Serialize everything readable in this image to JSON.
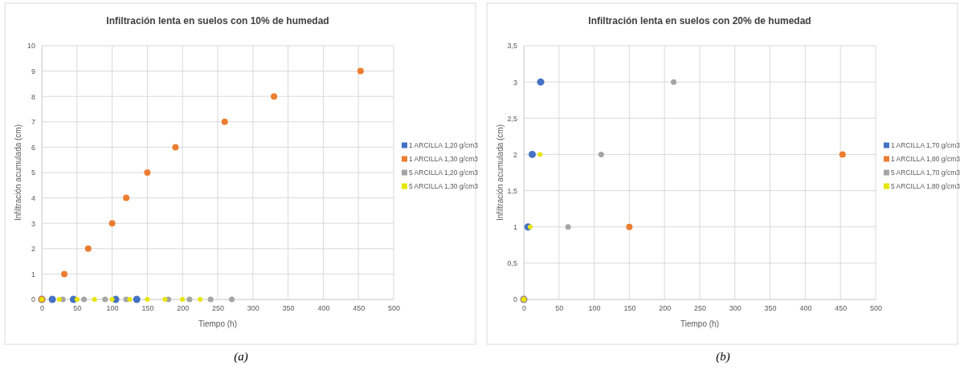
{
  "chart_data": [
    {
      "type": "scatter",
      "title": "Infiltración lenta en suelos con 10% de humedad",
      "xlabel": "Tiempo (h)",
      "ylabel": "Infiltración acumulada  (cm)",
      "xlim": [
        0,
        500
      ],
      "xticks": [
        0,
        50,
        100,
        150,
        200,
        250,
        300,
        350,
        400,
        450,
        500
      ],
      "ylim": [
        0,
        10
      ],
      "yticks": [
        0,
        1,
        2,
        3,
        4,
        5,
        6,
        7,
        8,
        9,
        10
      ],
      "grid": true,
      "legend": "right",
      "marker": "circle",
      "annotations": [
        "(a)"
      ],
      "series": [
        {
          "name": "1 ARCILLA 1,20 g/cm3",
          "color": "#4472c4",
          "x": [
            0,
            15,
            45,
            105,
            135
          ],
          "values": [
            0,
            0,
            0,
            0,
            0
          ]
        },
        {
          "name": "1 ARCILLA 1,30 g/cm3",
          "color": "#ed7d31",
          "x": [
            0,
            32,
            66,
            100,
            120,
            150,
            190,
            260,
            330,
            453
          ],
          "values": [
            0,
            1,
            2,
            3,
            4,
            5,
            6,
            7,
            8,
            9
          ]
        },
        {
          "name": "5 ARCILLA 1,20 g/cm3",
          "color": "#a5a5a5",
          "x": [
            30,
            60,
            90,
            120,
            180,
            210,
            240,
            270
          ],
          "values": [
            0,
            0,
            0,
            0,
            0,
            0,
            0,
            0
          ]
        },
        {
          "name": "5 ARCILLA 1,30 g/cm3",
          "color": "#e6e600",
          "x": [
            0,
            25,
            50,
            75,
            100,
            125,
            150,
            175,
            200,
            225
          ],
          "values": [
            0,
            0,
            0,
            0,
            0,
            0,
            0,
            0,
            0,
            0
          ]
        }
      ]
    },
    {
      "type": "scatter",
      "title": "Infiltración lenta en suelos con 20% de humedad",
      "xlabel": "Tiempo (h)",
      "ylabel": "Infiltración acumulada  (cm)",
      "xlim": [
        0,
        500
      ],
      "xticks": [
        0,
        50,
        100,
        150,
        200,
        250,
        300,
        350,
        400,
        450,
        500
      ],
      "ylim": [
        0,
        3.5
      ],
      "yticks": [
        {
          "value": 0,
          "label": "0"
        },
        {
          "value": 0.5,
          "label": "0,5"
        },
        {
          "value": 1,
          "label": "1"
        },
        {
          "value": 1.5,
          "label": "1,5"
        },
        {
          "value": 2,
          "label": "2"
        },
        {
          "value": 2.5,
          "label": "2,5"
        },
        {
          "value": 3,
          "label": "3"
        },
        {
          "value": 3.5,
          "label": "3,5"
        }
      ],
      "grid": true,
      "legend": "right",
      "marker": "circle",
      "annotations": [
        "(b)"
      ],
      "series": [
        {
          "name": "1 ARCILLA 1,70 g/cm3",
          "color": "#4472c4",
          "x": [
            0,
            6,
            12,
            24
          ],
          "values": [
            0,
            1,
            2,
            3
          ]
        },
        {
          "name": "1 ARCILLA 1,80 g/cm3",
          "color": "#ed7d31",
          "x": [
            0,
            150,
            453
          ],
          "values": [
            0,
            1,
            2
          ]
        },
        {
          "name": "5 ARCILLA 1,70 g/cm3",
          "color": "#a5a5a5",
          "x": [
            0,
            63,
            110,
            213
          ],
          "values": [
            0,
            1,
            2,
            3
          ]
        },
        {
          "name": "5 ARCILLA 1,80 g/cm3",
          "color": "#e6e600",
          "x": [
            0,
            9,
            23
          ],
          "values": [
            0,
            1,
            2
          ]
        }
      ]
    }
  ]
}
